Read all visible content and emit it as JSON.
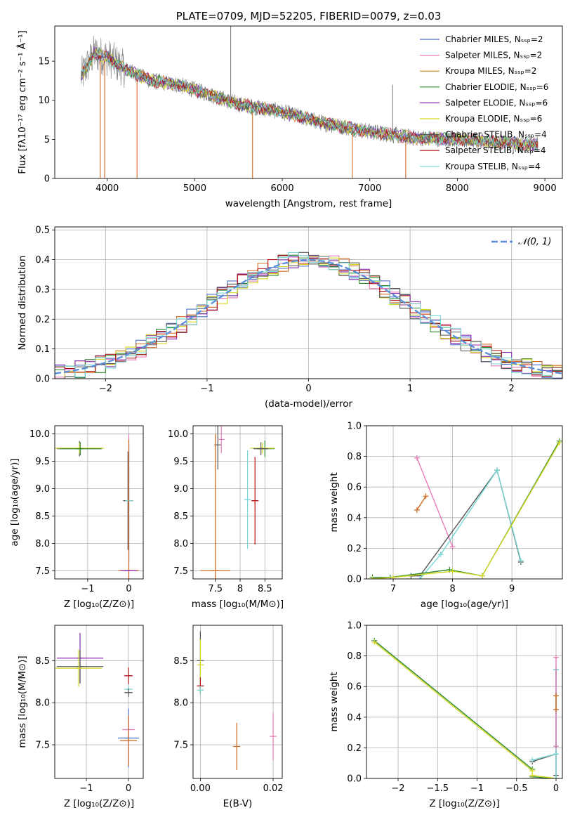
{
  "chart_data": [
    {
      "id": "spectrum",
      "type": "line",
      "title": "PLATE=0709, MJD=52205, FIBERID=0079, z=0.03",
      "xlabel": "wavelength [Angstrom, rest frame]",
      "ylabel": "Flux [fλ10⁻¹⁷ erg cm⁻² s⁻¹ Å⁻¹]",
      "xlim": [
        3400,
        9200
      ],
      "ylim": [
        0,
        19.5
      ],
      "xticks": [
        4000,
        5000,
        6000,
        7000,
        8000,
        9000
      ],
      "yticks": [
        0,
        5,
        10,
        15
      ],
      "grid": false,
      "legend_position": "top-right",
      "observed_anchor_points": {
        "x": [
          3700,
          3850,
          4000,
          4200,
          4500,
          4800,
          5100,
          5500,
          6000,
          6500,
          7000,
          7500,
          8000,
          8500,
          8920
        ],
        "y": [
          13.0,
          16.0,
          15.5,
          14.0,
          12.5,
          12.0,
          11.0,
          9.5,
          8.5,
          7.0,
          6.0,
          5.2,
          5.0,
          4.6,
          4.3
        ]
      },
      "series": [
        {
          "name": "Chabrier MILES, N_SSP=2",
          "color": "#4f6fd0"
        },
        {
          "name": "Salpeter MILES, N_SSP=2",
          "color": "#e87bb8"
        },
        {
          "name": "Kroupa MILES, N_SSP=2",
          "color": "#c98a1a"
        },
        {
          "name": "Chabrier ELODIE, N_SSP=6",
          "color": "#2c8a2c"
        },
        {
          "name": "Salpeter ELODIE, N_SSP=6",
          "color": "#8a2ab0"
        },
        {
          "name": "Kroupa ELODIE, N_SSP=6",
          "color": "#d6d622"
        },
        {
          "name": "Chabrier STELIB, N_SSP=4",
          "color": "#555555"
        },
        {
          "name": "Salpeter STELIB, N_SSP=4",
          "color": "#b01010"
        },
        {
          "name": "Kroupa STELIB, N_SSP=4",
          "color": "#78d6d6"
        }
      ]
    },
    {
      "id": "residuals",
      "type": "line",
      "xlabel": "(data-model)/error",
      "ylabel": "Normed distribution",
      "xlim": [
        -2.5,
        2.5
      ],
      "ylim": [
        0,
        0.51
      ],
      "xticks": [
        -2,
        -1,
        0,
        1,
        2
      ],
      "yticks": [
        0.0,
        0.1,
        0.2,
        0.3,
        0.4,
        0.5
      ],
      "grid": true,
      "legend_position": "top-right",
      "legend": "𝒩(0, 1)",
      "gaussian": {
        "mean": 0,
        "sigma": 1,
        "color": "#5b8fd9"
      },
      "histogram_bin_width": 0.1,
      "histogram_range": [
        -2.5,
        2.5
      ]
    },
    {
      "id": "age-vs-z",
      "type": "scatter",
      "xlabel": "Z [log₁₀(Z/Z⊙)]",
      "ylabel": "age  [log₁₀(age/yr)]",
      "xlim": [
        -1.8,
        0.35
      ],
      "ylim": [
        7.35,
        10.15
      ],
      "xticks": [
        -1,
        0
      ],
      "yticks": [
        7.5,
        8.0,
        8.5,
        9.0,
        9.5,
        10.0
      ],
      "grid": true,
      "errorbars": [
        {
          "x": -1.2,
          "y": 9.73,
          "xerr": 0.55,
          "yerr": 0.14,
          "color": "#555555"
        },
        {
          "x": -1.2,
          "y": 9.74,
          "xerr": 0.6,
          "yerr": 0.1,
          "color": "#d6d622"
        },
        {
          "x": -1.18,
          "y": 9.73,
          "xerr": 0.5,
          "yerr": 0.12,
          "color": "#2c8a2c"
        },
        {
          "x": -0.02,
          "y": 8.78,
          "xerr": 0.12,
          "yerr": 0.9,
          "color": "#555555"
        },
        {
          "x": 0.0,
          "y": 8.78,
          "xerr": 0.08,
          "yerr": 1.2,
          "color": "#78d6d6"
        },
        {
          "x": 0.0,
          "y": 7.5,
          "xerr": 0.2,
          "yerr": 2.5,
          "color": "#e87bb8"
        },
        {
          "x": 0.0,
          "y": 7.5,
          "xerr": 0.25,
          "yerr": 2.4,
          "color": "#d2691e"
        },
        {
          "x": 0.0,
          "y": 7.5,
          "xerr": 0.2,
          "yerr": 0.0,
          "color": "#8a2ab0"
        }
      ]
    },
    {
      "id": "age-vs-mass",
      "type": "scatter",
      "xlabel": "mass [log₁₀(M/M⊙)]",
      "xlim": [
        7.05,
        8.85
      ],
      "ylim": [
        7.35,
        10.15
      ],
      "xticks": [
        7.5,
        8.0,
        8.5
      ],
      "yticks": [
        7.5,
        8.0,
        8.5,
        9.0,
        9.5,
        10.0
      ],
      "grid": true,
      "errorbars": [
        {
          "x": 7.55,
          "y": 9.8,
          "xerr": 0.0,
          "yerr": 0.45,
          "color": "#555555"
        },
        {
          "x": 7.5,
          "y": 7.5,
          "xerr": 0.3,
          "yerr": 2.5,
          "color": "#d2691e"
        },
        {
          "x": 7.62,
          "y": 9.9,
          "xerr": 0.0,
          "yerr": 0.25,
          "color": "#e87bb8"
        },
        {
          "x": 8.15,
          "y": 8.8,
          "xerr": 0.05,
          "yerr": 0.9,
          "color": "#78d6d6"
        },
        {
          "x": 8.3,
          "y": 8.78,
          "xerr": 0.07,
          "yerr": 0.8,
          "color": "#b01010"
        },
        {
          "x": 8.5,
          "y": 9.73,
          "xerr": 0.2,
          "yerr": 0.15,
          "color": "#2c8a2c"
        },
        {
          "x": 8.45,
          "y": 9.74,
          "xerr": 0.25,
          "yerr": 0.1,
          "color": "#d6d622"
        },
        {
          "x": 8.42,
          "y": 9.73,
          "xerr": 0.15,
          "yerr": 0.12,
          "color": "#555555"
        }
      ]
    },
    {
      "id": "weight-vs-age",
      "type": "line",
      "xlabel": "age  [log₁₀(age/yr)]",
      "ylabel": "mass weight",
      "xlim": [
        6.55,
        9.85
      ],
      "ylim": [
        0,
        1.0
      ],
      "xticks": [
        7,
        8,
        9
      ],
      "yticks": [
        0.0,
        0.2,
        0.4,
        0.6,
        0.8,
        1.0
      ],
      "grid": true,
      "series": [
        {
          "name": "Salpeter MILES",
          "color": "#e87bb8",
          "x": [
            7.4,
            8.0
          ],
          "y": [
            0.79,
            0.21
          ]
        },
        {
          "name": "Kroupa MILES",
          "color": "#d2691e",
          "x": [
            7.4,
            7.55
          ],
          "y": [
            0.45,
            0.54
          ]
        },
        {
          "name": "Chabrier STELIB",
          "color": "#555555",
          "x": [
            7.3,
            7.45,
            8.75,
            9.15
          ],
          "y": [
            0.02,
            0.02,
            0.71,
            0.11
          ]
        },
        {
          "name": "Kroupa STELIB",
          "color": "#78d6d6",
          "x": [
            7.45,
            7.8,
            8.75,
            9.15
          ],
          "y": [
            0.0,
            0.16,
            0.71,
            0.12
          ]
        },
        {
          "name": "Chabrier ELODIE",
          "color": "#2c8a2c",
          "x": [
            6.65,
            6.95,
            7.95,
            8.5,
            9.8
          ],
          "y": [
            0.01,
            0.01,
            0.06,
            0.02,
            0.9
          ]
        },
        {
          "name": "Kroupa ELODIE",
          "color": "#d6d622",
          "x": [
            6.65,
            7.0,
            8.0,
            8.5,
            9.8
          ],
          "y": [
            0.0,
            0.01,
            0.05,
            0.02,
            0.89
          ]
        }
      ]
    },
    {
      "id": "mass-vs-z",
      "type": "scatter",
      "xlabel": "Z [log₁₀(Z/Z⊙)]",
      "ylabel": "mass [log₁₀(M/M⊙)]",
      "xlim": [
        -1.75,
        0.35
      ],
      "ylim": [
        7.1,
        8.92
      ],
      "xticks": [
        -1,
        0
      ],
      "yticks": [
        7.5,
        8.0,
        8.5
      ],
      "grid": true,
      "errorbars": [
        {
          "x": -1.15,
          "y": 8.53,
          "xerr": 0.55,
          "yerr": 0.3,
          "color": "#8a2ab0"
        },
        {
          "x": -1.15,
          "y": 8.43,
          "xerr": 0.55,
          "yerr": 0.2,
          "color": "#555555"
        },
        {
          "x": -1.18,
          "y": 8.41,
          "xerr": 0.55,
          "yerr": 0.22,
          "color": "#d6d622"
        },
        {
          "x": 0.0,
          "y": 8.32,
          "xerr": 0.1,
          "yerr": 0.1,
          "color": "#b01010"
        },
        {
          "x": 0.0,
          "y": 8.16,
          "xerr": 0.1,
          "yerr": 0.05,
          "color": "#78d6d6"
        },
        {
          "x": 0.0,
          "y": 8.12,
          "xerr": 0.1,
          "yerr": 0.05,
          "color": "#555555"
        },
        {
          "x": 0.0,
          "y": 7.68,
          "xerr": 0.15,
          "yerr": 0.15,
          "color": "#e87bb8"
        },
        {
          "x": 0.0,
          "y": 7.58,
          "xerr": 0.25,
          "yerr": 0.35,
          "color": "#4f6fd0"
        },
        {
          "x": 0.0,
          "y": 7.55,
          "xerr": 0.2,
          "yerr": 0.3,
          "color": "#d2691e"
        }
      ]
    },
    {
      "id": "mass-vs-ebv",
      "type": "scatter",
      "xlabel": "E(B-V)",
      "xlim": [
        -0.002,
        0.0225
      ],
      "ylim": [
        7.1,
        8.92
      ],
      "xticks": [
        0.0,
        0.02
      ],
      "xtick_labels": [
        "0.00",
        "0.02"
      ],
      "yticks": [
        7.5,
        8.0,
        8.5
      ],
      "grid": true,
      "errorbars": [
        {
          "x": 0.0,
          "y": 8.5,
          "xerr": 0.0,
          "yerr": 0.35,
          "color": "#555555"
        },
        {
          "x": 0.0,
          "y": 8.45,
          "xerr": 0.0,
          "yerr": 0.3,
          "color": "#d6d622"
        },
        {
          "x": 0.0,
          "y": 8.2,
          "xerr": 0.0,
          "yerr": 0.1,
          "color": "#b01010"
        },
        {
          "x": 0.0,
          "y": 8.15,
          "xerr": 0.0,
          "yerr": 0.05,
          "color": "#78d6d6"
        },
        {
          "x": 0.01,
          "y": 7.48,
          "xerr": 0.0,
          "yerr": 0.28,
          "color": "#d2691e"
        },
        {
          "x": 0.02,
          "y": 7.6,
          "xerr": 0.0,
          "yerr": 0.28,
          "color": "#e87bb8"
        }
      ]
    },
    {
      "id": "weight-vs-z",
      "type": "line",
      "xlabel": "Z [log₁₀(Z/Z⊙)]",
      "ylabel": "mass weight",
      "xlim": [
        -2.4,
        0.08
      ],
      "ylim": [
        0,
        1.0
      ],
      "xticks": [
        -2.0,
        -1.5,
        -1.0,
        -0.5,
        0.0
      ],
      "yticks": [
        0.0,
        0.2,
        0.4,
        0.6,
        0.8,
        1.0
      ],
      "grid": true,
      "series": [
        {
          "name": "Chabrier ELODIE",
          "color": "#2c8a2c",
          "x": [
            -2.3,
            -0.3,
            -0.3,
            0.0
          ],
          "y": [
            0.9,
            0.06,
            0.01,
            0.0
          ]
        },
        {
          "name": "Kroupa ELODIE",
          "color": "#d6d622",
          "x": [
            -2.3,
            -0.3,
            -0.3,
            0.0
          ],
          "y": [
            0.89,
            0.05,
            0.02,
            0.0
          ]
        },
        {
          "name": "Chabrier STELIB",
          "color": "#555555",
          "x": [
            -0.3,
            0.0,
            0.0,
            0.0
          ],
          "y": [
            0.11,
            0.16,
            0.71,
            0.02
          ]
        },
        {
          "name": "Kroupa STELIB",
          "color": "#78d6d6",
          "x": [
            -0.3,
            0.0,
            0.0,
            0.0
          ],
          "y": [
            0.12,
            0.16,
            0.71,
            0.0
          ]
        },
        {
          "name": "Salpeter MILES",
          "color": "#e87bb8",
          "x": [
            0.0,
            0.0
          ],
          "y": [
            0.79,
            0.21
          ]
        },
        {
          "name": "Kroupa MILES",
          "color": "#d2691e",
          "x": [
            0.0,
            0.0
          ],
          "y": [
            0.54,
            0.45
          ]
        }
      ]
    }
  ]
}
